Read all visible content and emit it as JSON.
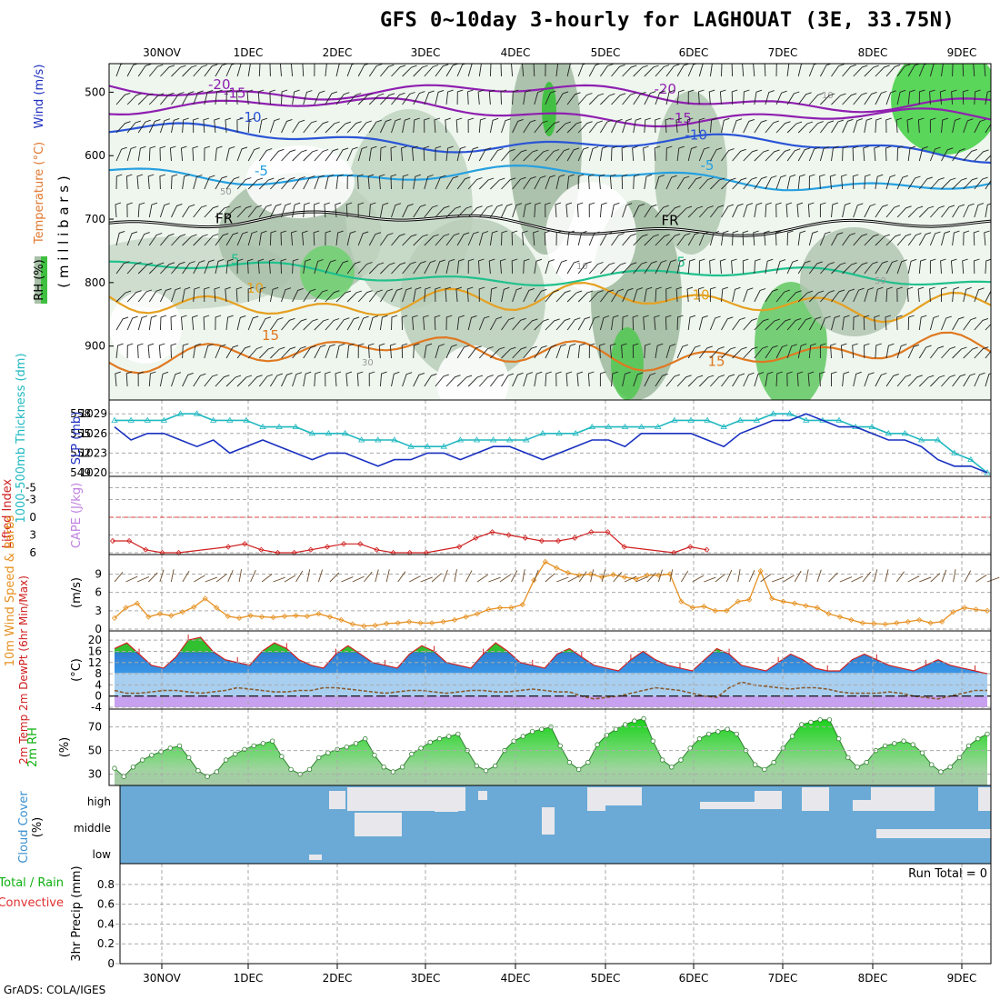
{
  "title": "GFS 0~10day 3-hourly for LAGHOUAT (3E, 33.75N)",
  "footer": "GrADS: COLA/IGES",
  "date_labels": [
    "30NOV",
    "1DEC",
    "2DEC",
    "3DEC",
    "4DEC",
    "5DEC",
    "6DEC",
    "7DEC",
    "8DEC",
    "9DEC"
  ],
  "chart_data": [
    {
      "type": "heatmap",
      "panel": "upper-air",
      "ylabel_parts": [
        "RH (%)",
        "Temperature (°C)",
        "Wind (m/s)",
        "( m i l l i b a r s )"
      ],
      "y_ticks": [
        "500",
        "600",
        "700",
        "800",
        "900"
      ],
      "temperature_contours": [
        {
          "value": -20,
          "label": "-20",
          "level_mb": 490,
          "color": "#8f1fb0"
        },
        {
          "value": -15,
          "label": "-15",
          "level_mb": 518,
          "color": "#8f1fb0"
        },
        {
          "value": -10,
          "label": "-10",
          "level_mb": 565,
          "color": "#2a54d6"
        },
        {
          "value": -5,
          "label": "-5",
          "level_mb": 625,
          "color": "#26a0e0"
        },
        {
          "value": 0,
          "label": "FR",
          "level_mb": 700,
          "color": "#000000"
        },
        {
          "value": 5,
          "label": "5",
          "level_mb": 780,
          "color": "#20c08c"
        },
        {
          "value": 10,
          "label": "10",
          "level_mb": 830,
          "color": "#e6a020"
        },
        {
          "value": 15,
          "label": "15",
          "level_mb": 910,
          "color": "#e07820"
        }
      ],
      "rh_labels": [
        "10",
        "50",
        "30"
      ]
    },
    {
      "type": "line",
      "panel": "thickness-slp",
      "ylabel_left": "1000-500mb Thickness (dm)",
      "ylabel_right": "SLP (mb)",
      "left_ticks": [
        "558",
        "555",
        "552",
        "549"
      ],
      "right_ticks": [
        "1029",
        "1026",
        "1023",
        "1020"
      ],
      "series": [
        {
          "name": "Thickness",
          "color": "#20b8c0",
          "values": [
            557,
            557,
            557,
            557,
            558,
            558,
            557,
            557,
            557,
            556,
            556,
            556,
            555,
            555,
            555,
            554,
            554,
            554,
            553,
            553,
            553,
            554,
            554,
            554,
            554,
            554,
            555,
            555,
            555,
            556,
            556,
            556,
            556,
            556,
            557,
            557,
            557,
            556,
            557,
            557,
            558,
            558,
            557,
            557,
            557,
            556,
            556,
            555,
            555,
            554,
            554,
            552,
            551,
            549
          ]
        },
        {
          "name": "SLP",
          "color": "#1830c0",
          "values": [
            1027,
            1025,
            1026,
            1026,
            1025,
            1024,
            1025,
            1023,
            1024,
            1025,
            1024,
            1023,
            1022,
            1023,
            1023,
            1022,
            1021,
            1022,
            1022,
            1023,
            1023,
            1022,
            1023,
            1024,
            1024,
            1023,
            1022,
            1023,
            1024,
            1025,
            1025,
            1024,
            1026,
            1026,
            1026,
            1026,
            1025,
            1024,
            1026,
            1027,
            1028,
            1028,
            1029,
            1028,
            1027,
            1027,
            1026,
            1025,
            1025,
            1024,
            1022,
            1021,
            1021,
            1020
          ]
        }
      ]
    },
    {
      "type": "line",
      "panel": "li-cape",
      "ylabel_left": "Lifted Index",
      "ylabel_right": "CAPE (J/kg)",
      "left_ticks": [
        "-5",
        "-3",
        "0",
        "3",
        "6"
      ],
      "series": [
        {
          "name": "Lifted Index",
          "color": "#d02020",
          "values": [
            4,
            4,
            5.5,
            6,
            6,
            6.5,
            6.5,
            5,
            4.5,
            5.5,
            6,
            6,
            5.5,
            5,
            4.5,
            4.5,
            5.5,
            6,
            6,
            6,
            6.5,
            5,
            3.5,
            2.5,
            3,
            3.5,
            4,
            4,
            3.5,
            2.5,
            2.5,
            5,
            6.5,
            6.5,
            6,
            5,
            5.5,
            6.5,
            7,
            7,
            7,
            7,
            7,
            7,
            7,
            7,
            7,
            7,
            7,
            7,
            7,
            7,
            7,
            7
          ]
        }
      ]
    },
    {
      "type": "line",
      "panel": "wind10m",
      "ylabel_left": "10m Wind Speed & Barbs",
      "ylabel_right": "(m/s)",
      "left_ticks": [
        "9",
        "6",
        "3",
        "0"
      ],
      "series": [
        {
          "name": "10m Wind Speed",
          "color": "#e69020",
          "values": [
            1.8,
            3.5,
            4.2,
            2,
            2.5,
            2.2,
            2.8,
            3.6,
            5,
            3.5,
            2.1,
            1.8,
            2.2,
            2,
            1.9,
            2.1,
            2.2,
            2.1,
            2.5,
            2,
            1.5,
            0.8,
            0.5,
            0.6,
            0.9,
            1,
            1.2,
            1,
            1,
            1.2,
            1.5,
            2,
            2.5,
            3.2,
            3.5,
            3.5,
            4,
            8,
            11,
            10,
            9.2,
            8.8,
            9,
            8.5,
            8.9,
            8.5,
            8.2,
            8.8,
            8.8,
            9,
            4.5,
            3.5,
            3.7,
            3,
            3,
            4.5,
            4.8,
            9.5,
            5,
            4.5,
            4.2,
            3.8,
            3.5,
            2.5,
            2,
            1.5,
            1,
            0.9,
            0.8,
            1,
            1.2,
            1.5,
            1,
            1.2,
            2.8,
            3.5,
            3.2,
            3
          ]
        }
      ]
    },
    {
      "type": "area",
      "panel": "temp2m",
      "ylabel_left": "2m Temp 2m DewPt (6hr Min/Max)",
      "ylabel_right": "(°C)",
      "left_ticks": [
        "20",
        "16",
        "12",
        "8",
        "4",
        "0",
        "-4"
      ],
      "series": [
        {
          "name": "2m Temp",
          "color": "#d02020",
          "values": [
            17,
            19,
            15,
            11,
            10,
            14,
            20,
            21,
            16,
            13,
            12,
            11,
            16,
            19,
            17,
            13,
            11,
            10,
            15,
            18,
            15,
            12,
            11,
            10,
            15,
            18,
            16,
            12,
            11,
            10,
            15,
            19,
            16,
            12,
            11,
            10,
            15,
            17,
            14,
            11,
            10,
            9,
            13,
            16,
            13,
            11,
            10,
            9,
            13,
            17,
            15,
            11,
            10,
            9,
            12,
            15,
            13,
            10,
            9,
            9,
            13,
            15,
            13,
            11,
            10,
            9,
            11,
            13,
            11,
            10,
            9,
            8
          ]
        },
        {
          "name": "2m DewPt",
          "color": "#8a5a30",
          "values": [
            2,
            1,
            1,
            1.5,
            2,
            2,
            1.5,
            1,
            1.5,
            2,
            3,
            2.5,
            2,
            1.5,
            1.5,
            2,
            2,
            3,
            3,
            2.5,
            2,
            1.5,
            1,
            1.5,
            2,
            2,
            1.5,
            1,
            1.5,
            2,
            2,
            1.5,
            1.5,
            2,
            2.5,
            2,
            1.5,
            1.5,
            0,
            -1,
            -0.5,
            0,
            1,
            2,
            3,
            2.5,
            2,
            1,
            0,
            -0.5,
            3,
            5,
            4,
            3.5,
            3,
            2.5,
            3,
            3,
            2.5,
            1.5,
            1,
            1,
            1,
            1.5,
            1,
            0,
            -0.5,
            -1,
            0,
            1,
            2,
            2
          ]
        }
      ]
    },
    {
      "type": "area",
      "panel": "rh2m",
      "ylabel_left": "2m RH",
      "ylabel_right": "(%)",
      "left_ticks": [
        "70",
        "50",
        "30"
      ],
      "series": [
        {
          "name": "2m RH",
          "color": "#10b010",
          "values": [
            35,
            28,
            36,
            42,
            46,
            49,
            52,
            54,
            44,
            33,
            28,
            32,
            42,
            47,
            51,
            54,
            56,
            58,
            45,
            34,
            30,
            34,
            44,
            48,
            51,
            53,
            56,
            60,
            46,
            36,
            32,
            36,
            47,
            52,
            57,
            60,
            62,
            64,
            50,
            37,
            33,
            37,
            50,
            58,
            62,
            66,
            68,
            70,
            54,
            40,
            34,
            40,
            55,
            63,
            68,
            72,
            75,
            77,
            58,
            42,
            36,
            42,
            52,
            60,
            64,
            66,
            68,
            64,
            50,
            38,
            34,
            40,
            52,
            62,
            72,
            74,
            76,
            76,
            60,
            44,
            36,
            40,
            50,
            54,
            56,
            58,
            55,
            48,
            38,
            32,
            36,
            44,
            54,
            60,
            64
          ]
        }
      ]
    },
    {
      "type": "heatmap",
      "panel": "cloud-cover",
      "ylabel_left": "Cloud Cover",
      "ylabel_right": "(%)",
      "rows": [
        "high",
        "middle",
        "low"
      ],
      "fill_color": "#6baad6",
      "clear_color": "#e8e8ec"
    },
    {
      "type": "line",
      "panel": "precip",
      "ylabel_left": "Total / Rain",
      "ylabel_left2": "Convective",
      "ylabel_right": "3hr Precip (mm)",
      "left_ticks": [
        "0.8",
        "0.6",
        "0.4",
        "0.2",
        "0"
      ],
      "run_total": "Run Total = 0",
      "series": []
    }
  ]
}
